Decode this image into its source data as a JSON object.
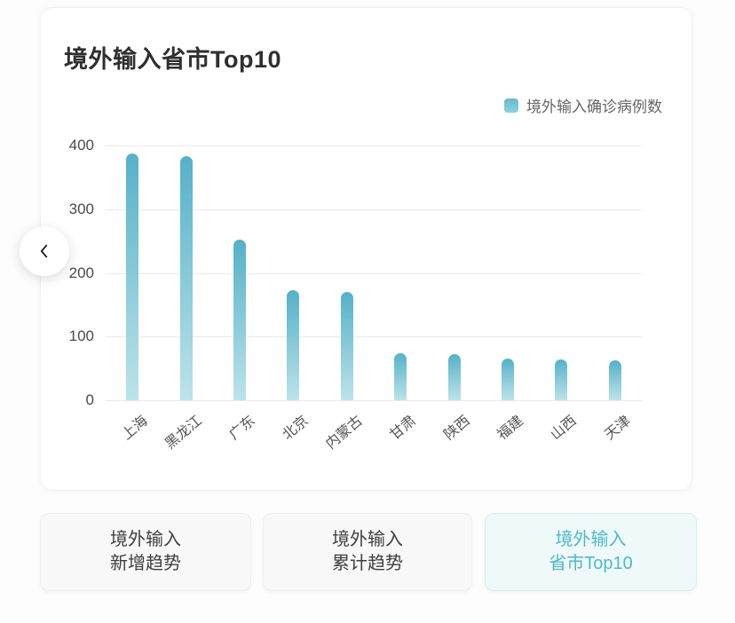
{
  "card": {
    "title": "境外输入省市Top10"
  },
  "legend": {
    "label": "境外输入确诊病例数",
    "swatch_color_top": "#63bcd0",
    "swatch_color_bottom": "#92d1dd"
  },
  "chart_data": {
    "type": "bar",
    "title": "境外输入省市Top10",
    "series_name": "境外输入确诊病例数",
    "categories": [
      "上海",
      "黑龙江",
      "广东",
      "北京",
      "内蒙古",
      "甘肃",
      "陕西",
      "福建",
      "山西",
      "天津"
    ],
    "values": [
      388,
      383,
      252,
      173,
      170,
      74,
      72,
      65,
      64,
      63
    ],
    "xlabel": "",
    "ylabel": "",
    "ylim": [
      0,
      400
    ],
    "yticks": [
      0,
      100,
      200,
      300,
      400
    ],
    "grid": true,
    "legend_position": "top-right",
    "bar_color_top": "#55b1c8",
    "bar_color_bottom": "#bce3ea"
  },
  "nav": {
    "back_label": "previous chart"
  },
  "tabs": [
    {
      "line1": "境外输入",
      "line2": "新增趋势",
      "active": false
    },
    {
      "line1": "境外输入",
      "line2": "累计趋势",
      "active": false
    },
    {
      "line1": "境外输入",
      "line2": "省市Top10",
      "active": true
    }
  ]
}
